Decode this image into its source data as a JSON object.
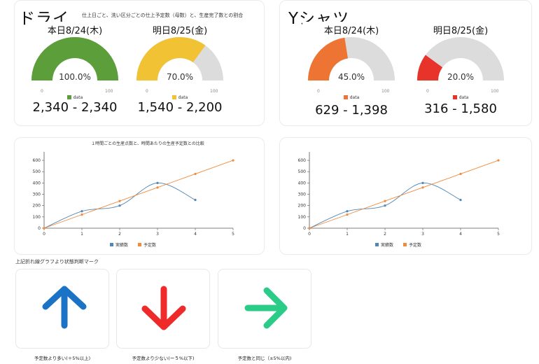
{
  "dry": {
    "title": "ドライ",
    "subtitle": "仕上日ごと、洗い区分ごとの仕上予定数（母数）と、生産完了数との割合",
    "gauges": [
      {
        "label": "本日8/24(木)",
        "percent_text": "100.0%",
        "value": 1.0,
        "color": "#5b9e3a",
        "min": "0",
        "max": "100",
        "legend": "data",
        "range": "2,340 - 2,340"
      },
      {
        "label": "明日8/25(金)",
        "percent_text": "70.0%",
        "value": 0.7,
        "color": "#f0c234",
        "min": "0",
        "max": "100",
        "legend": "data",
        "range": "1,540 - 2,200"
      }
    ]
  },
  "yshirt": {
    "title": "Yシャツ",
    "gauges": [
      {
        "label": "本日8/24(木)",
        "percent_text": "45.0%",
        "value": 0.45,
        "color": "#ee7433",
        "min": "0",
        "max": "100",
        "legend": "data",
        "range": "629 - 1,398"
      },
      {
        "label": "明日8/25(金)",
        "percent_text": "20.0%",
        "value": 0.2,
        "color": "#e8332a",
        "min": "0",
        "max": "100",
        "legend": "data",
        "range": "316 - 1,580"
      }
    ]
  },
  "chart_data": [
    {
      "type": "line",
      "title": "１時間ごとの生産点数と、時間あたりの生産予定数との比較",
      "x": [
        0,
        1,
        2,
        3,
        4,
        5
      ],
      "xlim": [
        0,
        5
      ],
      "ylim": [
        0,
        650
      ],
      "yticks": [
        0,
        100,
        200,
        300,
        400,
        500,
        600
      ],
      "xticks": [
        0,
        1,
        2,
        3,
        4,
        5
      ],
      "series": [
        {
          "name": "実績数",
          "color": "#4f86b5",
          "x": [
            0,
            1,
            2,
            3,
            4
          ],
          "values": [
            0,
            150,
            200,
            400,
            250
          ],
          "smooth": true
        },
        {
          "name": "予定数",
          "color": "#f08a3c",
          "x": [
            0,
            1,
            2,
            3,
            4,
            5
          ],
          "values": [
            0,
            120,
            240,
            360,
            480,
            600
          ],
          "smooth": false
        }
      ]
    },
    {
      "type": "line",
      "title": "",
      "x": [
        0,
        1,
        2,
        3,
        4,
        5
      ],
      "xlim": [
        0,
        5
      ],
      "ylim": [
        0,
        650
      ],
      "yticks": [
        0,
        100,
        200,
        300,
        400,
        500,
        600
      ],
      "xticks": [
        0,
        1,
        2,
        3,
        4,
        5
      ],
      "series": [
        {
          "name": "実績数",
          "color": "#4f86b5",
          "x": [
            0,
            1,
            2,
            3,
            4
          ],
          "values": [
            0,
            150,
            200,
            400,
            250
          ],
          "smooth": true
        },
        {
          "name": "予定数",
          "color": "#f08a3c",
          "x": [
            0,
            1,
            2,
            3,
            4,
            5
          ],
          "values": [
            0,
            120,
            240,
            360,
            480,
            600
          ],
          "smooth": false
        }
      ]
    }
  ],
  "status_marks": {
    "heading": "上記折れ線グラフより状態判断マーク",
    "items": [
      {
        "icon": "arrow-up-icon",
        "color": "#1a73c5",
        "caption": "予定数より多い(＋5%以上)"
      },
      {
        "icon": "arrow-down-icon",
        "color": "#ef2a2a",
        "caption": "予定数より少ない(ー５%以下)"
      },
      {
        "icon": "arrow-right-icon",
        "color": "#2bcc88",
        "caption": "予定数と同じ（±5%以内)"
      }
    ]
  }
}
